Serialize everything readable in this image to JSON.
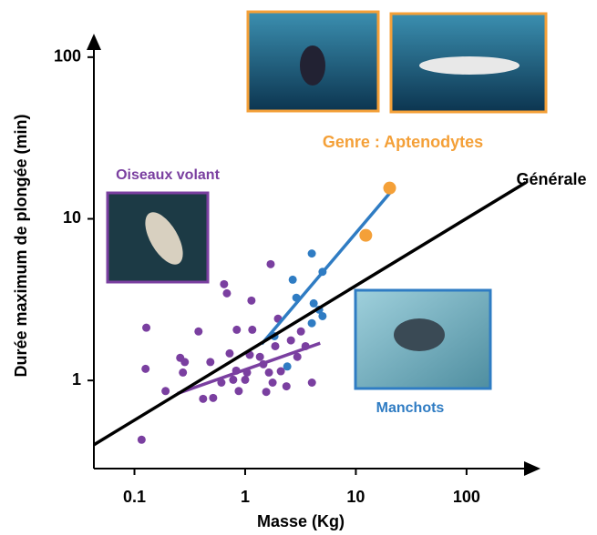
{
  "chart_data": {
    "type": "scatter",
    "x_label": "Masse (Kg)",
    "y_label": "Durée maximum de plongée (min)",
    "log_x": true,
    "log_y": true,
    "xlim": [
      0.043,
      400
    ],
    "ylim": [
      0.285,
      126
    ],
    "xticks": [
      0.1,
      1,
      10,
      100
    ],
    "yticks": [
      1,
      10,
      100
    ],
    "series": [
      {
        "name": "Oiseaux volant",
        "color": "#7a3fa0",
        "x": [
          0.116,
          0.128,
          0.126,
          0.191,
          0.259,
          0.274,
          0.285,
          0.379,
          0.417,
          0.514,
          0.485,
          0.61,
          0.645,
          0.684,
          0.724,
          0.78,
          0.83,
          0.84,
          0.875,
          1.0,
          1.04,
          1.1,
          1.16,
          1.14,
          1.36,
          1.46,
          1.55,
          1.64,
          1.7,
          1.77,
          1.87,
          1.98,
          2.1,
          2.36,
          2.59,
          2.96,
          3.19,
          3.51,
          4.01
        ],
        "values": [
          0.43,
          2.12,
          1.18,
          0.86,
          1.38,
          1.12,
          1.3,
          2.01,
          0.77,
          0.78,
          1.3,
          0.97,
          3.94,
          3.46,
          1.47,
          1.01,
          1.15,
          2.06,
          0.86,
          1.01,
          1.12,
          1.44,
          2.06,
          3.12,
          1.4,
          1.26,
          0.85,
          1.12,
          5.24,
          0.97,
          1.63,
          2.41,
          1.14,
          0.92,
          1.77,
          1.4,
          2.01,
          1.63,
          0.97
        ],
        "fit": {
          "x": [
            0.245,
            4.76
          ],
          "values": [
            0.83,
            1.7
          ]
        }
      },
      {
        "name": "Manchots",
        "color": "#2f7cc3",
        "x": [
          1.84,
          2.4,
          2.69,
          2.9,
          4.0,
          4.16,
          4.0,
          4.66,
          5.0,
          5.0
        ],
        "values": [
          1.88,
          1.22,
          4.2,
          3.25,
          6.1,
          3.0,
          2.26,
          2.74,
          4.7,
          2.5
        ],
        "fit": {
          "x": [
            1.41,
            20.2
          ],
          "values": [
            1.68,
            14.4
          ]
        }
      },
      {
        "name": "Genre : Aptenodytes",
        "color": "#f4a038",
        "x": [
          12.3,
          20.2
        ],
        "values": [
          7.9,
          15.5
        ]
      },
      {
        "name": "Générale",
        "color": "#000000",
        "line": true,
        "x": [
          0.043,
          344
        ],
        "values": [
          0.4,
          16.8
        ]
      }
    ]
  }
}
